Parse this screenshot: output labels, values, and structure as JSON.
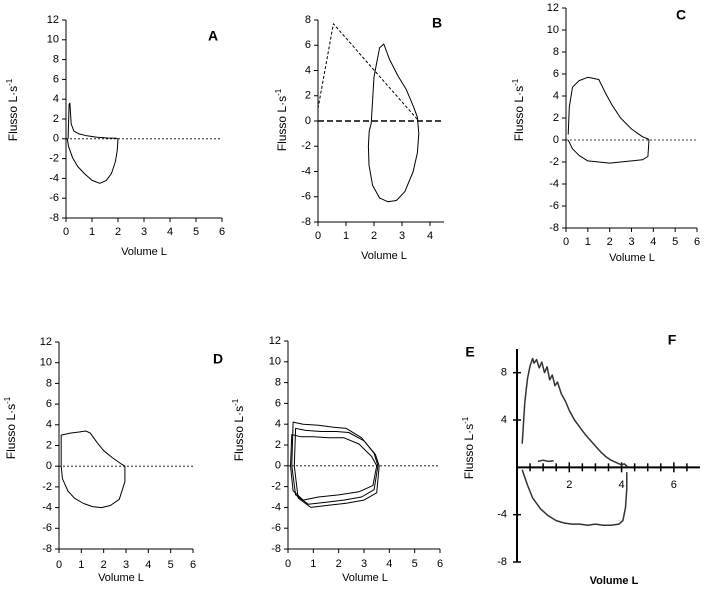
{
  "chart_data": [
    {
      "panel": "A",
      "type": "line",
      "xlabel": "Volume L",
      "ylabel": "Flusso L·s",
      "ylabel_sup": "-1",
      "xlim": [
        0,
        6
      ],
      "ylim": [
        -8,
        12
      ],
      "xticks": [
        0,
        1,
        2,
        3,
        4,
        5,
        6
      ],
      "yticks": [
        -8,
        -6,
        -4,
        -2,
        0,
        2,
        4,
        6,
        8,
        10,
        12
      ],
      "series": [
        {
          "dash": false,
          "x": [
            0.08,
            0.12,
            0.15,
            0.2,
            0.3,
            0.5,
            0.8,
            1.2,
            1.6,
            1.95,
            2.0,
            1.97,
            1.9,
            1.75,
            1.55,
            1.3,
            1.0,
            0.7,
            0.45,
            0.25,
            0.1,
            0.05
          ],
          "y": [
            0,
            3.5,
            3.6,
            1.5,
            0.8,
            0.5,
            0.3,
            0.15,
            0.08,
            0.05,
            0,
            -1.2,
            -2.3,
            -3.5,
            -4.2,
            -4.5,
            -4.2,
            -3.5,
            -2.8,
            -1.9,
            -0.8,
            0
          ]
        }
      ],
      "refline": 0
    },
    {
      "panel": "B",
      "type": "line",
      "xlabel": "Volume L",
      "ylabel": "Flusso L·s",
      "ylabel_sup": "-1",
      "xlim": [
        0,
        4.5
      ],
      "ylim": [
        -8,
        8
      ],
      "xticks": [
        0,
        1,
        2,
        3,
        4
      ],
      "yticks": [
        -8,
        -6,
        -4,
        -2,
        0,
        2,
        4,
        6,
        8
      ],
      "series": [
        {
          "dash": true,
          "x": [
            0,
            0.55,
            3.6
          ],
          "y": [
            1,
            7.7,
            0
          ]
        },
        {
          "dash": false,
          "x": [
            1.9,
            2.0,
            2.2,
            2.35,
            2.55,
            2.85,
            3.15,
            3.4,
            3.55,
            3.6,
            3.55,
            3.4,
            3.1,
            2.8,
            2.5,
            2.2,
            1.95,
            1.82,
            1.8,
            1.83,
            1.9
          ],
          "y": [
            -0.2,
            3.5,
            5.8,
            6.1,
            4.9,
            3.6,
            2.5,
            1.2,
            0.3,
            -1,
            -2.5,
            -4,
            -5.6,
            -6.3,
            -6.4,
            -6.1,
            -5.1,
            -3.5,
            -2,
            -0.8,
            -0.2
          ]
        }
      ],
      "refline": 0
    },
    {
      "panel": "C",
      "type": "line",
      "xlabel": "Volume L",
      "ylabel": "Flusso L·s",
      "ylabel_sup": "-1",
      "xlim": [
        0,
        6
      ],
      "ylim": [
        -8,
        12
      ],
      "xticks": [
        0,
        1,
        2,
        3,
        4,
        5,
        6
      ],
      "yticks": [
        -8,
        -6,
        -4,
        -2,
        0,
        2,
        4,
        6,
        8,
        10,
        12
      ],
      "series": [
        {
          "dash": false,
          "x": [
            0.1,
            0.15,
            0.3,
            0.6,
            1.0,
            1.5,
            1.8,
            2.1,
            2.5,
            3.0,
            3.5,
            3.75,
            3.8,
            3.75,
            3.5,
            3.0,
            2.5,
            2.0,
            1.5,
            1.0,
            0.6,
            0.3,
            0.1
          ],
          "y": [
            0.5,
            3,
            4.8,
            5.4,
            5.7,
            5.5,
            4.3,
            3.2,
            2.0,
            1.0,
            0.3,
            0.1,
            0,
            -1.5,
            -1.8,
            -1.9,
            -2.0,
            -2.1,
            -2.0,
            -1.9,
            -1.4,
            -0.8,
            0
          ]
        }
      ],
      "refline": 0
    },
    {
      "panel": "D",
      "type": "line",
      "xlabel": "Volume L",
      "ylabel": "Flusso L·s",
      "ylabel_sup": "-1",
      "xlim": [
        0,
        6
      ],
      "ylim": [
        -8,
        12
      ],
      "xticks": [
        0,
        1,
        2,
        3,
        4,
        5,
        6
      ],
      "yticks": [
        -8,
        -6,
        -4,
        -2,
        0,
        2,
        4,
        6,
        8,
        10,
        12
      ],
      "series": [
        {
          "dash": false,
          "x": [
            0.1,
            0.1,
            0.5,
            0.9,
            1.2,
            1.4,
            1.7,
            2.0,
            2.4,
            2.8,
            2.95,
            2.95,
            2.7,
            2.3,
            1.9,
            1.5,
            1.1,
            0.7,
            0.4,
            0.15,
            0.1
          ],
          "y": [
            0,
            3.0,
            3.2,
            3.3,
            3.4,
            3.2,
            2.3,
            1.5,
            0.8,
            0.2,
            0,
            -1.5,
            -3.2,
            -3.8,
            -4.0,
            -3.9,
            -3.6,
            -3.1,
            -2.4,
            -1.2,
            0
          ]
        }
      ],
      "refline": 0
    },
    {
      "panel": "E",
      "type": "line",
      "xlabel": "Volume L",
      "ylabel": "Flusso L·s",
      "ylabel_sup": "-1",
      "xlim": [
        0,
        6
      ],
      "ylim": [
        -8,
        12
      ],
      "xticks": [
        0,
        1,
        2,
        3,
        4,
        5,
        6
      ],
      "yticks": [
        -8,
        -6,
        -4,
        -2,
        0,
        2,
        4,
        6,
        8,
        10,
        12
      ],
      "series": [
        {
          "dash": false,
          "x": [
            0.15,
            0.2,
            0.6,
            1.2,
            1.8,
            2.3,
            2.9,
            3.4,
            3.55,
            3.4,
            2.9,
            2.2,
            1.5,
            0.8,
            0.3,
            0.15
          ],
          "y": [
            0,
            4.2,
            4.0,
            3.9,
            3.7,
            3.6,
            2.7,
            1.2,
            0,
            -2.3,
            -3.0,
            -3.3,
            -3.5,
            -3.7,
            -2.8,
            0
          ]
        },
        {
          "dash": false,
          "x": [
            0.25,
            0.3,
            0.7,
            1.3,
            1.9,
            2.4,
            3.0,
            3.45,
            3.6,
            3.5,
            3.0,
            2.3,
            1.6,
            0.9,
            0.4,
            0.25
          ],
          "y": [
            0,
            3.6,
            3.4,
            3.3,
            3.3,
            3.2,
            2.4,
            1.1,
            0,
            -2.6,
            -3.3,
            -3.6,
            -3.8,
            -4.0,
            -3.1,
            0
          ]
        },
        {
          "dash": false,
          "x": [
            0.1,
            0.15,
            0.5,
            1.0,
            1.6,
            2.2,
            2.8,
            3.3,
            3.5,
            3.35,
            2.8,
            2.0,
            1.2,
            0.6,
            0.2,
            0.1
          ],
          "y": [
            0,
            3.0,
            2.8,
            2.8,
            2.7,
            2.7,
            2.1,
            0.9,
            0,
            -1.9,
            -2.5,
            -2.8,
            -3.0,
            -3.3,
            -2.4,
            0
          ]
        }
      ],
      "refline": 0
    },
    {
      "panel": "F",
      "type": "line",
      "xlabel": "Volume L",
      "ylabel": "Flusso L·s",
      "ylabel_sup": "-1",
      "xlim": [
        0,
        7
      ],
      "ylim": [
        -8,
        10
      ],
      "xticks": [
        2,
        4,
        6
      ],
      "yticks": [
        -8,
        -4,
        4,
        8
      ],
      "series": [
        {
          "dash": false,
          "x": [
            0.2,
            0.3,
            0.4,
            0.5,
            0.6,
            0.65,
            0.75,
            0.85,
            0.95,
            1.05,
            1.15,
            1.25,
            1.35,
            1.45,
            1.55,
            1.7,
            1.85,
            2.0,
            2.2,
            2.4,
            2.6,
            2.8,
            3.0,
            3.2,
            3.4,
            3.6,
            3.8,
            4.0,
            4.1,
            4.2,
            4.25
          ],
          "y": [
            2.0,
            5.5,
            7.5,
            8.6,
            9.2,
            8.8,
            9.1,
            8.4,
            8.9,
            8.0,
            8.5,
            7.4,
            7.8,
            6.9,
            7.2,
            6.2,
            5.6,
            4.8,
            4.0,
            3.4,
            2.8,
            2.3,
            1.8,
            1.3,
            0.9,
            0.6,
            0.4,
            0.2,
            0.3,
            0.1,
            0
          ]
        },
        {
          "dash": false,
          "x": [
            0.2,
            0.4,
            0.6,
            0.9,
            1.2,
            1.5,
            1.8,
            2.1,
            2.4,
            2.7,
            3.0,
            3.3,
            3.6,
            3.9,
            4.05,
            4.15,
            4.2,
            4.2
          ],
          "y": [
            -0.2,
            -1.5,
            -2.6,
            -3.5,
            -4.1,
            -4.5,
            -4.7,
            -4.8,
            -4.8,
            -4.9,
            -4.8,
            -4.9,
            -4.9,
            -4.8,
            -4.5,
            -3.4,
            -1.8,
            -0.4
          ]
        },
        {
          "dash": false,
          "x": [
            0.8,
            1.0,
            1.2,
            1.4
          ],
          "y": [
            0.5,
            0.6,
            0.5,
            0.55
          ]
        }
      ],
      "refline": null
    }
  ]
}
